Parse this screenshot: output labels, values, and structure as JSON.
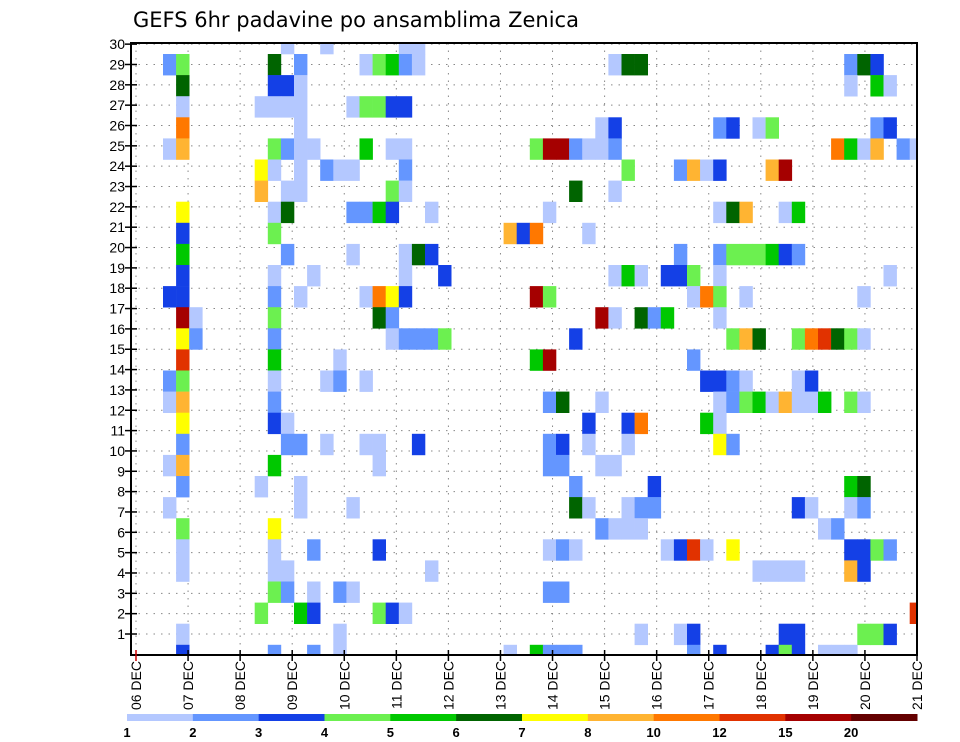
{
  "chart_data": {
    "type": "heatmap",
    "title": "GEFS 6hr padavine po ansamblima Zenica",
    "xlabel": "",
    "ylabel": "",
    "x_step_hours": 6,
    "x_tick_labels": [
      "06 DEC",
      "07 DEC",
      "08 DEC",
      "09 DEC",
      "10 DEC",
      "11 DEC",
      "12 DEC",
      "13 DEC",
      "14 DEC",
      "15 DEC",
      "16 DEC",
      "17 DEC",
      "18 DEC",
      "19 DEC",
      "20 DEC",
      "21 DEC"
    ],
    "y_tick_labels": [
      "1",
      "2",
      "3",
      "4",
      "5",
      "6",
      "7",
      "8",
      "9",
      "10",
      "11",
      "12",
      "13",
      "14",
      "15",
      "16",
      "17",
      "18",
      "19",
      "20",
      "21",
      "22",
      "23",
      "24",
      "25",
      "26",
      "27",
      "28",
      "29",
      "30"
    ],
    "grid": true,
    "legend": {
      "placement": "bottom",
      "labels": [
        "1",
        "2",
        "3",
        "4",
        "5",
        "6",
        "7",
        "8",
        "10",
        "12",
        "15",
        "20"
      ],
      "levels": [
        1,
        2,
        3,
        4,
        5,
        6,
        7,
        8,
        10,
        12,
        15,
        20
      ],
      "colors": [
        "#b4c8ff",
        "#6496ff",
        "#1440e6",
        "#6cf050",
        "#00c800",
        "#006400",
        "#ffff00",
        "#ffb432",
        "#ff7800",
        "#e13200",
        "#a50000",
        "#640000"
      ]
    },
    "cells_format": "rows listed top to bottom; each entry 'timestep:value' where timestep = 6h steps after 06 DEC 00Z and value = lower bound of precipitation class",
    "rows": [
      "12:1 15:1 21:1 22:1",
      "3:2 4:4 11:6 13:2 18:1 19:4 20:5 21:2 22:1 37:1 38:6 39:6 55:2 56:6 57:3",
      "4:6 11:3 12:3 13:1 55:1 57:5 58:1",
      "4:1 10:1 11:1 12:1 13:1 17:1 18:4 19:4 20:3 21:3",
      "4:10 13:1 36:1 37:3 45:2 46:3 48:1 49:4 57:2 58:3",
      "3:1 4:8 11:4 12:2 13:1 14:1 18:5 20:1 21:1 31:4 32:15 33:15 34:2 35:1 36:1 37:2 54:10 55:5 56:1 57:8 59:2 60:1",
      "10:7 11:1 13:1 15:2 16:1 17:1 21:2 38:4 42:2 43:8 44:1 45:3 49:8 50:15",
      "10:8 12:1 13:1 20:4 21:1 34:6 37:1",
      "4:7 11:1 12:6 17:2 18:2 19:5 20:3 23:1 32:1 45:1 46:6 47:8 50:1 51:5",
      "4:3 11:4 29:8 30:3 31:10 35:1",
      "4:5 12:2 17:1 21:1 22:6 23:3 42:2 45:2 46:4 47:4 48:4 49:5 50:3 51:2",
      "4:3 11:1 14:1 21:1 24:3 37:1 38:5 39:1 41:3 42:3 43:4 45:1 58:1",
      "3:3 4:3 11:2 13:1 18:1 19:10 20:7 21:3 31:15 32:4 43:1 44:10 45:4 47:1 56:1",
      "4:15 5:1 11:4 19:6 20:2 36:15 37:1 39:6 40:2 41:5 45:1",
      "4:7 5:2 11:2 20:1 21:2 22:2 23:2 24:4 34:3 46:4 47:8 48:6 51:4 52:10 53:12 54:6 55:4 56:1",
      "4:12 11:5 16:1 31:5 32:15 43:2",
      "3:2 4:4 11:1 15:1 16:2 18:1 44:3 45:3 46:2 47:1 51:1 52:3",
      "3:1 4:8 11:2 32:2 33:6 36:1 45:1 46:2 47:4 48:5 49:1 50:8 51:1 52:1 53:5 55:4 56:1",
      "4:7 11:3 12:1 35:3 38:3 39:10 44:5 45:1",
      "4:2 12:2 13:2 15:1 18:1 19:1 22:3 32:2 33:3 35:1 38:1 45:7 46:2",
      "3:1 4:8 11:5 19:1 32:2 33:2 36:1 37:1",
      "4:2 10:1 13:1 34:2 40:3 55:5 56:6",
      "3:1 13:1 17:1 34:6 35:1 38:1 39:2 40:2 51:3 52:1 55:1 56:2",
      "4:4 11:7 36:2 37:1 38:1 39:1 53:1 54:2",
      "4:1 11:1 14:2 19:3 32:1 33:2 34:1 41:1 42:3 43:12 44:1 46:7 55:3 56:3 57:4 58:2",
      "4:1 11:1 12:1 23:1 48:1 49:1 50:1 51:1 55:8 56:3",
      "11:4 12:2 14:1 16:2 17:1 32:2 33:2",
      "10:4 13:5 14:3 19:4 20:3 21:1 60:12",
      "4:1 16:1 39:1 42:1 43:3 50:3 51:3 56:4 57:4 58:3",
      "4:3 11:2 14:2 16:1 29:1 31:5 32:2 33:2 34:2 43:2 45:3 49:3 50:4 51:3 53:1 54:1 55:1"
    ]
  }
}
